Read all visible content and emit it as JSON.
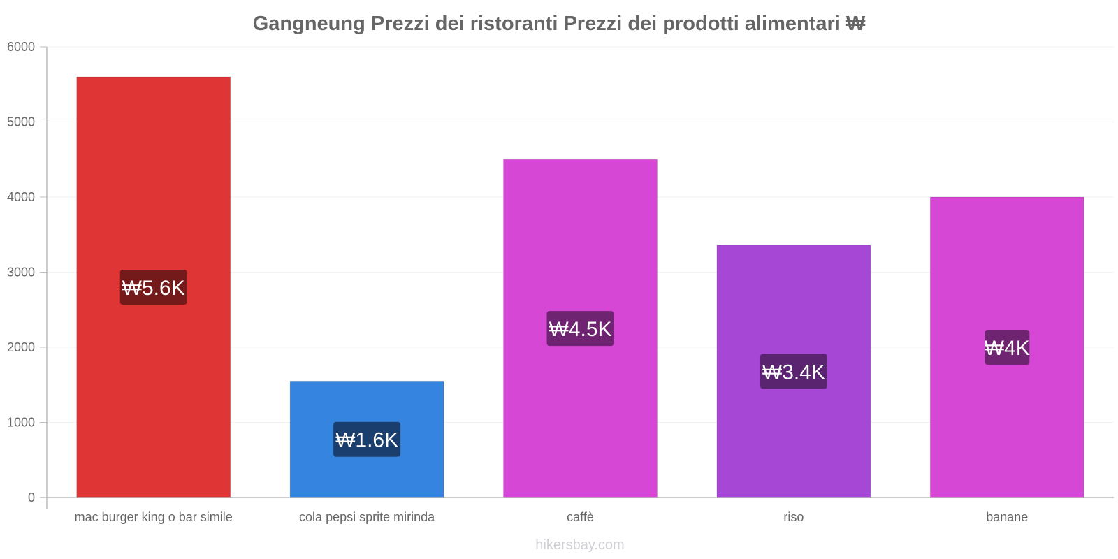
{
  "chart_data": {
    "type": "bar",
    "title": "Gangneung Prezzi dei ristoranti Prezzi dei prodotti alimentari ₩",
    "xlabel": "",
    "ylabel": "",
    "ylim": [
      0,
      6000
    ],
    "yticks": [
      0,
      1000,
      2000,
      3000,
      4000,
      5000,
      6000
    ],
    "grid": true,
    "categories": [
      "mac burger king o bar simile",
      "cola pepsi sprite mirinda",
      "caffè",
      "riso",
      "banane"
    ],
    "values": [
      5600,
      1550,
      4500,
      3360,
      4000
    ],
    "value_labels": [
      "₩5.6K",
      "₩1.6K",
      "₩4.5K",
      "₩3.4K",
      "₩4K"
    ],
    "bar_colors": [
      "#e03535",
      "#3584e0",
      "#d647d6",
      "#a747d6",
      "#d647d6"
    ],
    "label_bg_colors": [
      "#741a1a",
      "#1a3f6e",
      "#6e2470",
      "#5a2470",
      "#6e2470"
    ]
  },
  "footer": {
    "credit": "hikersbay.com"
  }
}
